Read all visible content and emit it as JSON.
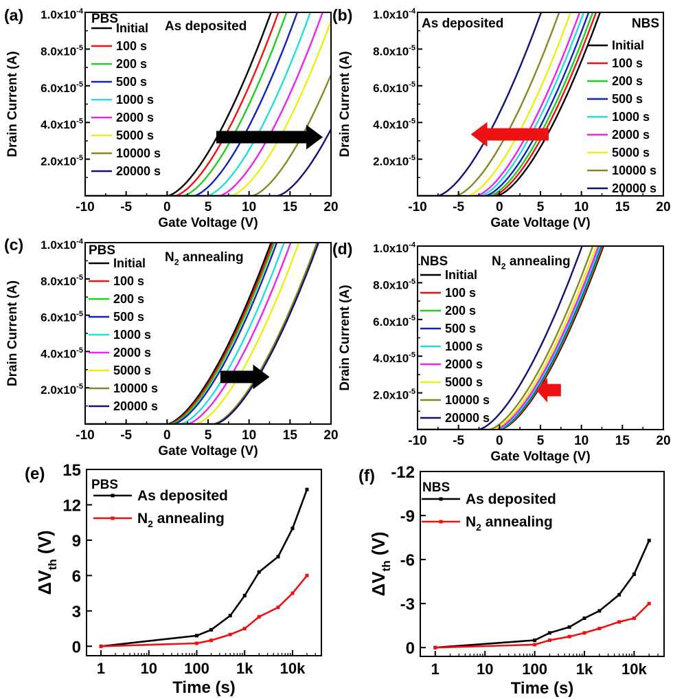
{
  "chart_data": [
    {
      "panel": "(a)",
      "type": "line",
      "xlabel": "Gate Voltage (V)",
      "ylabel": "Drain Current (A)",
      "xlim": [
        -10,
        20
      ],
      "ylim": [
        0,
        0.0001
      ],
      "xticks": [
        "-10",
        "-5",
        "0",
        "5",
        "10",
        "15",
        "20"
      ],
      "yticks": [
        {
          "m": "2.0x10",
          "e": "-5",
          "v": 2e-05
        },
        {
          "m": "4.0x10",
          "e": "-5",
          "v": 4e-05
        },
        {
          "m": "6.0x10",
          "e": "-5",
          "v": 6e-05
        },
        {
          "m": "8.0x10",
          "e": "-5",
          "v": 8e-05
        },
        {
          "m": "1.0x10",
          "e": "-4",
          "v": 0.0001
        }
      ],
      "labels": [
        {
          "text": "PBS"
        },
        {
          "text": "As deposited"
        }
      ],
      "arrow": {
        "direction": "right",
        "color": "#000000",
        "x1": 6,
        "x2": 19,
        "y": 3.2e-05
      },
      "legend_position": "left",
      "series": [
        {
          "name": "Initial",
          "color": "#000000",
          "vth": 0.0
        },
        {
          "name": "100 s",
          "color": "#ee1111",
          "vth": 0.9
        },
        {
          "name": "200 s",
          "color": "#22cc22",
          "vth": 1.9
        },
        {
          "name": "500 s",
          "color": "#1122bb",
          "vth": 3.2
        },
        {
          "name": "1000 s",
          "color": "#22dddd",
          "vth": 4.8
        },
        {
          "name": "2000 s",
          "color": "#ee22ee",
          "vth": 6.3
        },
        {
          "name": "5000 s",
          "color": "#eeee11",
          "vth": 7.7
        },
        {
          "name": "10000 s",
          "color": "#888822",
          "vth": 10.3
        },
        {
          "name": "20000 s",
          "color": "#111177",
          "vth": 13.4
        }
      ]
    },
    {
      "panel": "(b)",
      "type": "line",
      "xlabel": "Gate Voltage (V)",
      "ylabel": "Drain Current (A)",
      "xlim": [
        -10,
        20
      ],
      "ylim": [
        0,
        0.0001
      ],
      "xticks": [
        "-10",
        "-5",
        "0",
        "5",
        "10",
        "15",
        "20"
      ],
      "yticks": [
        {
          "m": "2.0x10",
          "e": "-5",
          "v": 2e-05
        },
        {
          "m": "4.0x10",
          "e": "-5",
          "v": 4e-05
        },
        {
          "m": "6.0x10",
          "e": "-5",
          "v": 6e-05
        },
        {
          "m": "8.0x10",
          "e": "-5",
          "v": 8e-05
        },
        {
          "m": "1.0x10",
          "e": "-4",
          "v": 0.0001
        }
      ],
      "labels": [
        {
          "text": "As deposited"
        },
        {
          "text": "NBS"
        }
      ],
      "arrow": {
        "direction": "left",
        "color": "#ee1111",
        "x1": 6,
        "x2": -3.5,
        "y": 3.35e-05
      },
      "legend_position": "right",
      "series": [
        {
          "name": "Initial",
          "color": "#000000",
          "vth": -0.4
        },
        {
          "name": "100 s",
          "color": "#ee1111",
          "vth": -0.9
        },
        {
          "name": "200 s",
          "color": "#22cc22",
          "vth": -1.3
        },
        {
          "name": "500 s",
          "color": "#1122bb",
          "vth": -1.8
        },
        {
          "name": "1000 s",
          "color": "#22dddd",
          "vth": -2.4
        },
        {
          "name": "2000 s",
          "color": "#ee22ee",
          "vth": -2.9
        },
        {
          "name": "5000 s",
          "color": "#eeee11",
          "vth": -4.0
        },
        {
          "name": "10000 s",
          "color": "#888822",
          "vth": -5.4
        },
        {
          "name": "20000 s",
          "color": "#111177",
          "vth": -7.6
        }
      ]
    },
    {
      "panel": "(c)",
      "type": "line",
      "xlabel": "Gate Voltage (V)",
      "ylabel": "Drain Current (A)",
      "xlim": [
        -10,
        20
      ],
      "ylim": [
        0,
        0.0001
      ],
      "xticks": [
        "-10",
        "-5",
        "0",
        "5",
        "10",
        "15",
        "20"
      ],
      "yticks": [
        {
          "m": "2.0x10",
          "e": "-5",
          "v": 2e-05
        },
        {
          "m": "4.0x10",
          "e": "-5",
          "v": 4e-05
        },
        {
          "m": "6.0x10",
          "e": "-5",
          "v": 6e-05
        },
        {
          "m": "8.0x10",
          "e": "-5",
          "v": 8e-05
        },
        {
          "m": "1.0x10",
          "e": "-4",
          "v": 0.0001
        }
      ],
      "labels": [
        {
          "text": "PBS"
        },
        {
          "text": "N",
          "sub": "2",
          "rest": " annealing"
        }
      ],
      "arrow": {
        "direction": "right",
        "color": "#000000",
        "x1": 6.5,
        "x2": 12.5,
        "y": 2.6e-05
      },
      "legend_position": "left",
      "series": [
        {
          "name": "Initial",
          "color": "#000000",
          "vth": 0.0
        },
        {
          "name": "100 s",
          "color": "#ee1111",
          "vth": 0.2
        },
        {
          "name": "200 s",
          "color": "#22cc22",
          "vth": 0.4
        },
        {
          "name": "500 s",
          "color": "#1122bb",
          "vth": 0.7
        },
        {
          "name": "1000 s",
          "color": "#22dddd",
          "vth": 1.6
        },
        {
          "name": "2000 s",
          "color": "#ee22ee",
          "vth": 2.4
        },
        {
          "name": "5000 s",
          "color": "#eeee11",
          "vth": 3.4
        },
        {
          "name": "10000 s",
          "color": "#888822",
          "vth": 5.6
        },
        {
          "name": "20000 s",
          "color": "#111177",
          "vth": 5.8
        }
      ]
    },
    {
      "panel": "(d)",
      "type": "line",
      "xlabel": "Gate Voltage (V)",
      "ylabel": "Drain Current (A)",
      "xlim": [
        -10,
        20
      ],
      "ylim": [
        0,
        0.0001
      ],
      "xticks": [
        "-10",
        "-5",
        "0",
        "5",
        "10",
        "15",
        "20"
      ],
      "yticks": [
        {
          "m": "2.0x10",
          "e": "-5",
          "v": 2e-05
        },
        {
          "m": "4.0x10",
          "e": "-5",
          "v": 4e-05
        },
        {
          "m": "6.0x10",
          "e": "-5",
          "v": 6e-05
        },
        {
          "m": "8.0x10",
          "e": "-5",
          "v": 8e-05
        },
        {
          "m": "1.0x10",
          "e": "-4",
          "v": 0.0001
        }
      ],
      "labels": [
        {
          "text": "NBS"
        },
        {
          "text": "N",
          "sub": "2",
          "rest": " annealing"
        }
      ],
      "arrow": {
        "direction": "left",
        "color": "#ee1111",
        "x1": 7.5,
        "x2": 4.5,
        "y": 2.15e-05
      },
      "legend_position": "left",
      "series": [
        {
          "name": "Initial",
          "color": "#000000",
          "vth": 0.0
        },
        {
          "name": "100 s",
          "color": "#ee1111",
          "vth": -0.1
        },
        {
          "name": "200 s",
          "color": "#22cc22",
          "vth": -0.2
        },
        {
          "name": "500 s",
          "color": "#1122bb",
          "vth": -0.3
        },
        {
          "name": "1000 s",
          "color": "#22dddd",
          "vth": -0.4
        },
        {
          "name": "2000 s",
          "color": "#ee22ee",
          "vth": -0.6
        },
        {
          "name": "5000 s",
          "color": "#eeee11",
          "vth": -0.9
        },
        {
          "name": "10000 s",
          "color": "#888822",
          "vth": -1.3
        },
        {
          "name": "20000 s",
          "color": "#111177",
          "vth": -2.6
        }
      ]
    },
    {
      "panel": "(e)",
      "type": "line",
      "xlabel": "Time (s)",
      "ylabel": "ΔV",
      "ylabel_sub": "th",
      "ylabel_rest": " (V)",
      "xscale": "log",
      "xlim": [
        0.5,
        40000
      ],
      "ylim": [
        -0.8,
        15
      ],
      "xticks": [
        {
          "label": "1",
          "v": 1
        },
        {
          "label": "10",
          "v": 10
        },
        {
          "label": "100",
          "v": 100
        },
        {
          "label": "1k",
          "v": 1000
        },
        {
          "label": "10k",
          "v": 10000
        }
      ],
      "yticks": [
        {
          "label": "0",
          "v": 0
        },
        {
          "label": "3",
          "v": 3
        },
        {
          "label": "6",
          "v": 6
        },
        {
          "label": "9",
          "v": 9
        },
        {
          "label": "12",
          "v": 12
        },
        {
          "label": "15",
          "v": 15
        }
      ],
      "labels": [
        {
          "text": "PBS"
        }
      ],
      "legend_position": "top-left",
      "x": [
        1,
        100,
        200,
        500,
        1000,
        2000,
        5000,
        10000,
        20000
      ],
      "series": [
        {
          "name": "As deposited",
          "color": "#000000",
          "values": [
            0,
            0.9,
            1.4,
            2.6,
            4.3,
            6.3,
            7.6,
            10.0,
            13.3
          ]
        },
        {
          "name": "N",
          "name_sub": "2",
          "name_rest": " annealing",
          "color": "#ee1111",
          "values": [
            0,
            0.25,
            0.5,
            1.0,
            1.5,
            2.5,
            3.3,
            4.5,
            6.0
          ]
        }
      ]
    },
    {
      "panel": "(f)",
      "type": "line",
      "xlabel": "Time (s)",
      "ylabel": "ΔV",
      "ylabel_sub": "th",
      "ylabel_rest": " (V)",
      "xscale": "log",
      "xlim": [
        0.5,
        40000
      ],
      "ylim": [
        0.6,
        -12
      ],
      "y_inverted": true,
      "xticks": [
        {
          "label": "1",
          "v": 1
        },
        {
          "label": "10",
          "v": 10
        },
        {
          "label": "100",
          "v": 100
        },
        {
          "label": "1k",
          "v": 1000
        },
        {
          "label": "10k",
          "v": 10000
        }
      ],
      "yticks": [
        {
          "label": "0",
          "v": 0
        },
        {
          "label": "-3",
          "v": -3
        },
        {
          "label": "-6",
          "v": -6
        },
        {
          "label": "-9",
          "v": -9
        },
        {
          "label": "-12",
          "v": -12
        }
      ],
      "labels": [
        {
          "text": "NBS"
        }
      ],
      "legend_position": "top-left",
      "x": [
        1,
        100,
        200,
        500,
        1000,
        2000,
        5000,
        10000,
        20000
      ],
      "series": [
        {
          "name": "As deposited",
          "color": "#000000",
          "values": [
            0,
            -0.5,
            -1.0,
            -1.4,
            -2.0,
            -2.5,
            -3.6,
            -5.0,
            -7.3
          ]
        },
        {
          "name": "N",
          "name_sub": "2",
          "name_rest": " annealing",
          "color": "#ee1111",
          "values": [
            0,
            -0.2,
            -0.5,
            -0.75,
            -1.0,
            -1.3,
            -1.75,
            -2.0,
            -3.0
          ]
        }
      ]
    }
  ],
  "panel_labels": [
    "(a)",
    "(b)",
    "(c)",
    "(d)",
    "(e)",
    "(f)"
  ]
}
